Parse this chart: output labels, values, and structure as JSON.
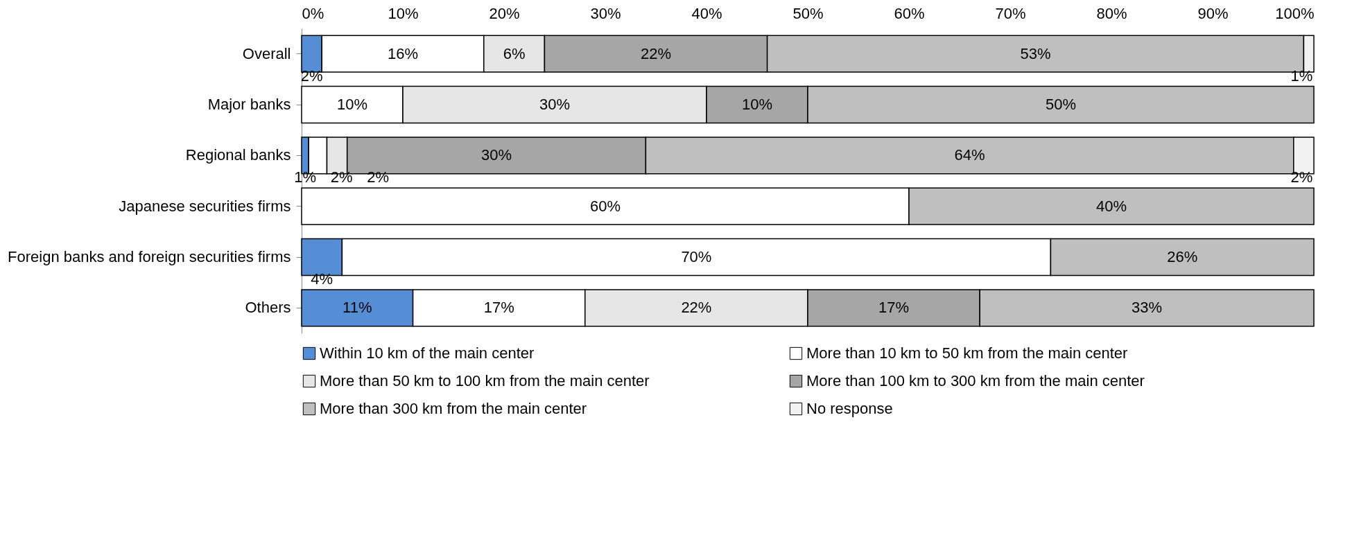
{
  "chart_data": {
    "type": "bar",
    "orientation": "horizontal",
    "stacked": true,
    "legend": "bottom",
    "grid": false,
    "categories": [
      "Overall",
      "Major banks",
      "Regional banks",
      "Japanese securities firms",
      "Foreign banks and foreign securities firms",
      "Others"
    ],
    "xlim": [
      0,
      100
    ],
    "xticks": [
      {
        "value": 0,
        "label": "0%"
      },
      {
        "value": 10,
        "label": "10%"
      },
      {
        "value": 20,
        "label": "20%"
      },
      {
        "value": 30,
        "label": "30%"
      },
      {
        "value": 40,
        "label": "40%"
      },
      {
        "value": 50,
        "label": "50%"
      },
      {
        "value": 60,
        "label": "60%"
      },
      {
        "value": 70,
        "label": "70%"
      },
      {
        "value": 80,
        "label": "80%"
      },
      {
        "value": 90,
        "label": "90%"
      },
      {
        "value": 100,
        "label": "100%"
      }
    ],
    "series": [
      {
        "name": "Within 10 km of the main center",
        "color": "#558ed5",
        "values": [
          2,
          null,
          0.7,
          null,
          4,
          11
        ],
        "value_labels": [
          "2%",
          null,
          "1%",
          null,
          "4%",
          "11%"
        ]
      },
      {
        "name": "More than 10 km to 50 km from the main center",
        "color": "#ffffff",
        "values": [
          16,
          10,
          1.8,
          60,
          70,
          17
        ],
        "value_labels": [
          "16%",
          "10%",
          "2%",
          "60%",
          "70%",
          "17%"
        ]
      },
      {
        "name": "More than 50 km to 100 km from the main center",
        "color": "#e6e6e6",
        "values": [
          6,
          30,
          2,
          null,
          null,
          22
        ],
        "value_labels": [
          "6%",
          "30%",
          "2%",
          null,
          null,
          "22%"
        ]
      },
      {
        "name": "More than 100 km to 300 km from the main center",
        "color": "#a6a6a6",
        "values": [
          22,
          10,
          29.5,
          null,
          null,
          17
        ],
        "value_labels": [
          "22%",
          "10%",
          "30%",
          null,
          null,
          "17%"
        ]
      },
      {
        "name": "More than 300 km from the main center",
        "color": "#bfbfbf",
        "values": [
          53,
          50,
          64,
          40,
          26,
          33
        ],
        "value_labels": [
          "53%",
          "50%",
          "64%",
          "40%",
          "26%",
          "33%"
        ]
      },
      {
        "name": "No response",
        "color": "#f2f2f2",
        "values": [
          1,
          null,
          2,
          null,
          null,
          null
        ],
        "value_labels": [
          "1%",
          null,
          "2%",
          null,
          null,
          null
        ]
      }
    ]
  }
}
